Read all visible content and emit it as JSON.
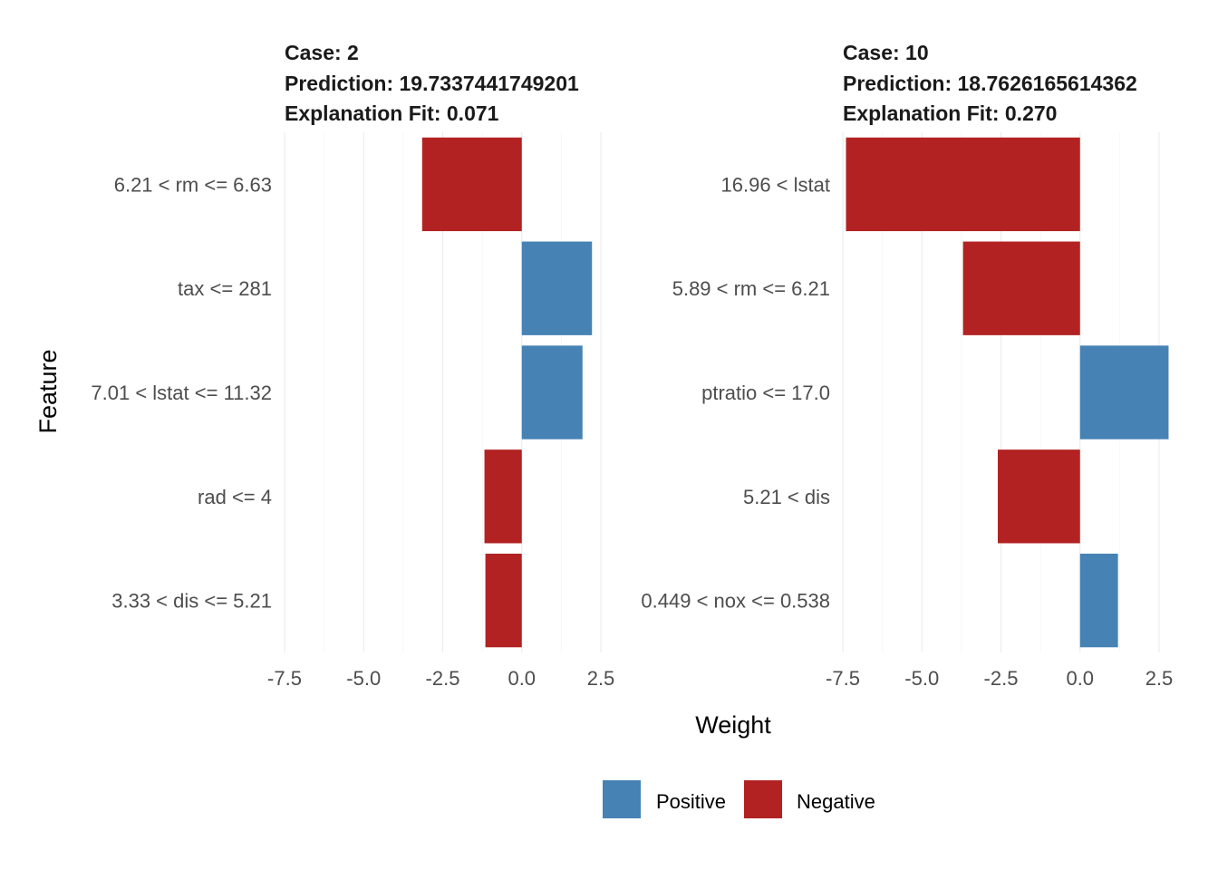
{
  "colors": {
    "positive": "#4682B4",
    "negative": "#B22222"
  },
  "legend": {
    "positive_label": "Positive",
    "negative_label": "Negative"
  },
  "axes": {
    "x_title": "Weight",
    "y_title": "Feature"
  },
  "chart_data": [
    {
      "type": "bar",
      "orientation": "horizontal",
      "title_lines": [
        "Case: 2",
        "Prediction: 19.7337441749201",
        "Explanation Fit: 0.071"
      ],
      "categories": [
        "6.21 < rm <= 6.63",
        "tax <= 281",
        "7.01 < lstat <= 11.32",
        "rad <= 4",
        "3.33 < dis <= 5.21"
      ],
      "values": [
        -3.15,
        2.22,
        1.92,
        -1.18,
        -1.15
      ],
      "xlim": [
        -7.5,
        2.5
      ],
      "xticks": [
        "-7.5",
        "-5.0",
        "-2.5",
        "0.0",
        "2.5"
      ],
      "xlabel": "Weight",
      "ylabel": "Feature",
      "grid": true
    },
    {
      "type": "bar",
      "orientation": "horizontal",
      "title_lines": [
        "Case: 10",
        "Prediction: 18.7626165614362",
        "Explanation Fit: 0.270"
      ],
      "categories": [
        "16.96 < lstat",
        "5.89 < rm <= 6.21",
        "ptratio <= 17.0",
        "5.21 < dis",
        "0.449 < nox <= 0.538"
      ],
      "values": [
        -7.4,
        -3.7,
        2.8,
        -2.6,
        1.2
      ],
      "xlim": [
        -7.5,
        2.5
      ],
      "xticks": [
        "-7.5",
        "-5.0",
        "-2.5",
        "0.0",
        "2.5"
      ],
      "xlabel": "Weight",
      "ylabel": "Feature",
      "grid": true
    }
  ]
}
